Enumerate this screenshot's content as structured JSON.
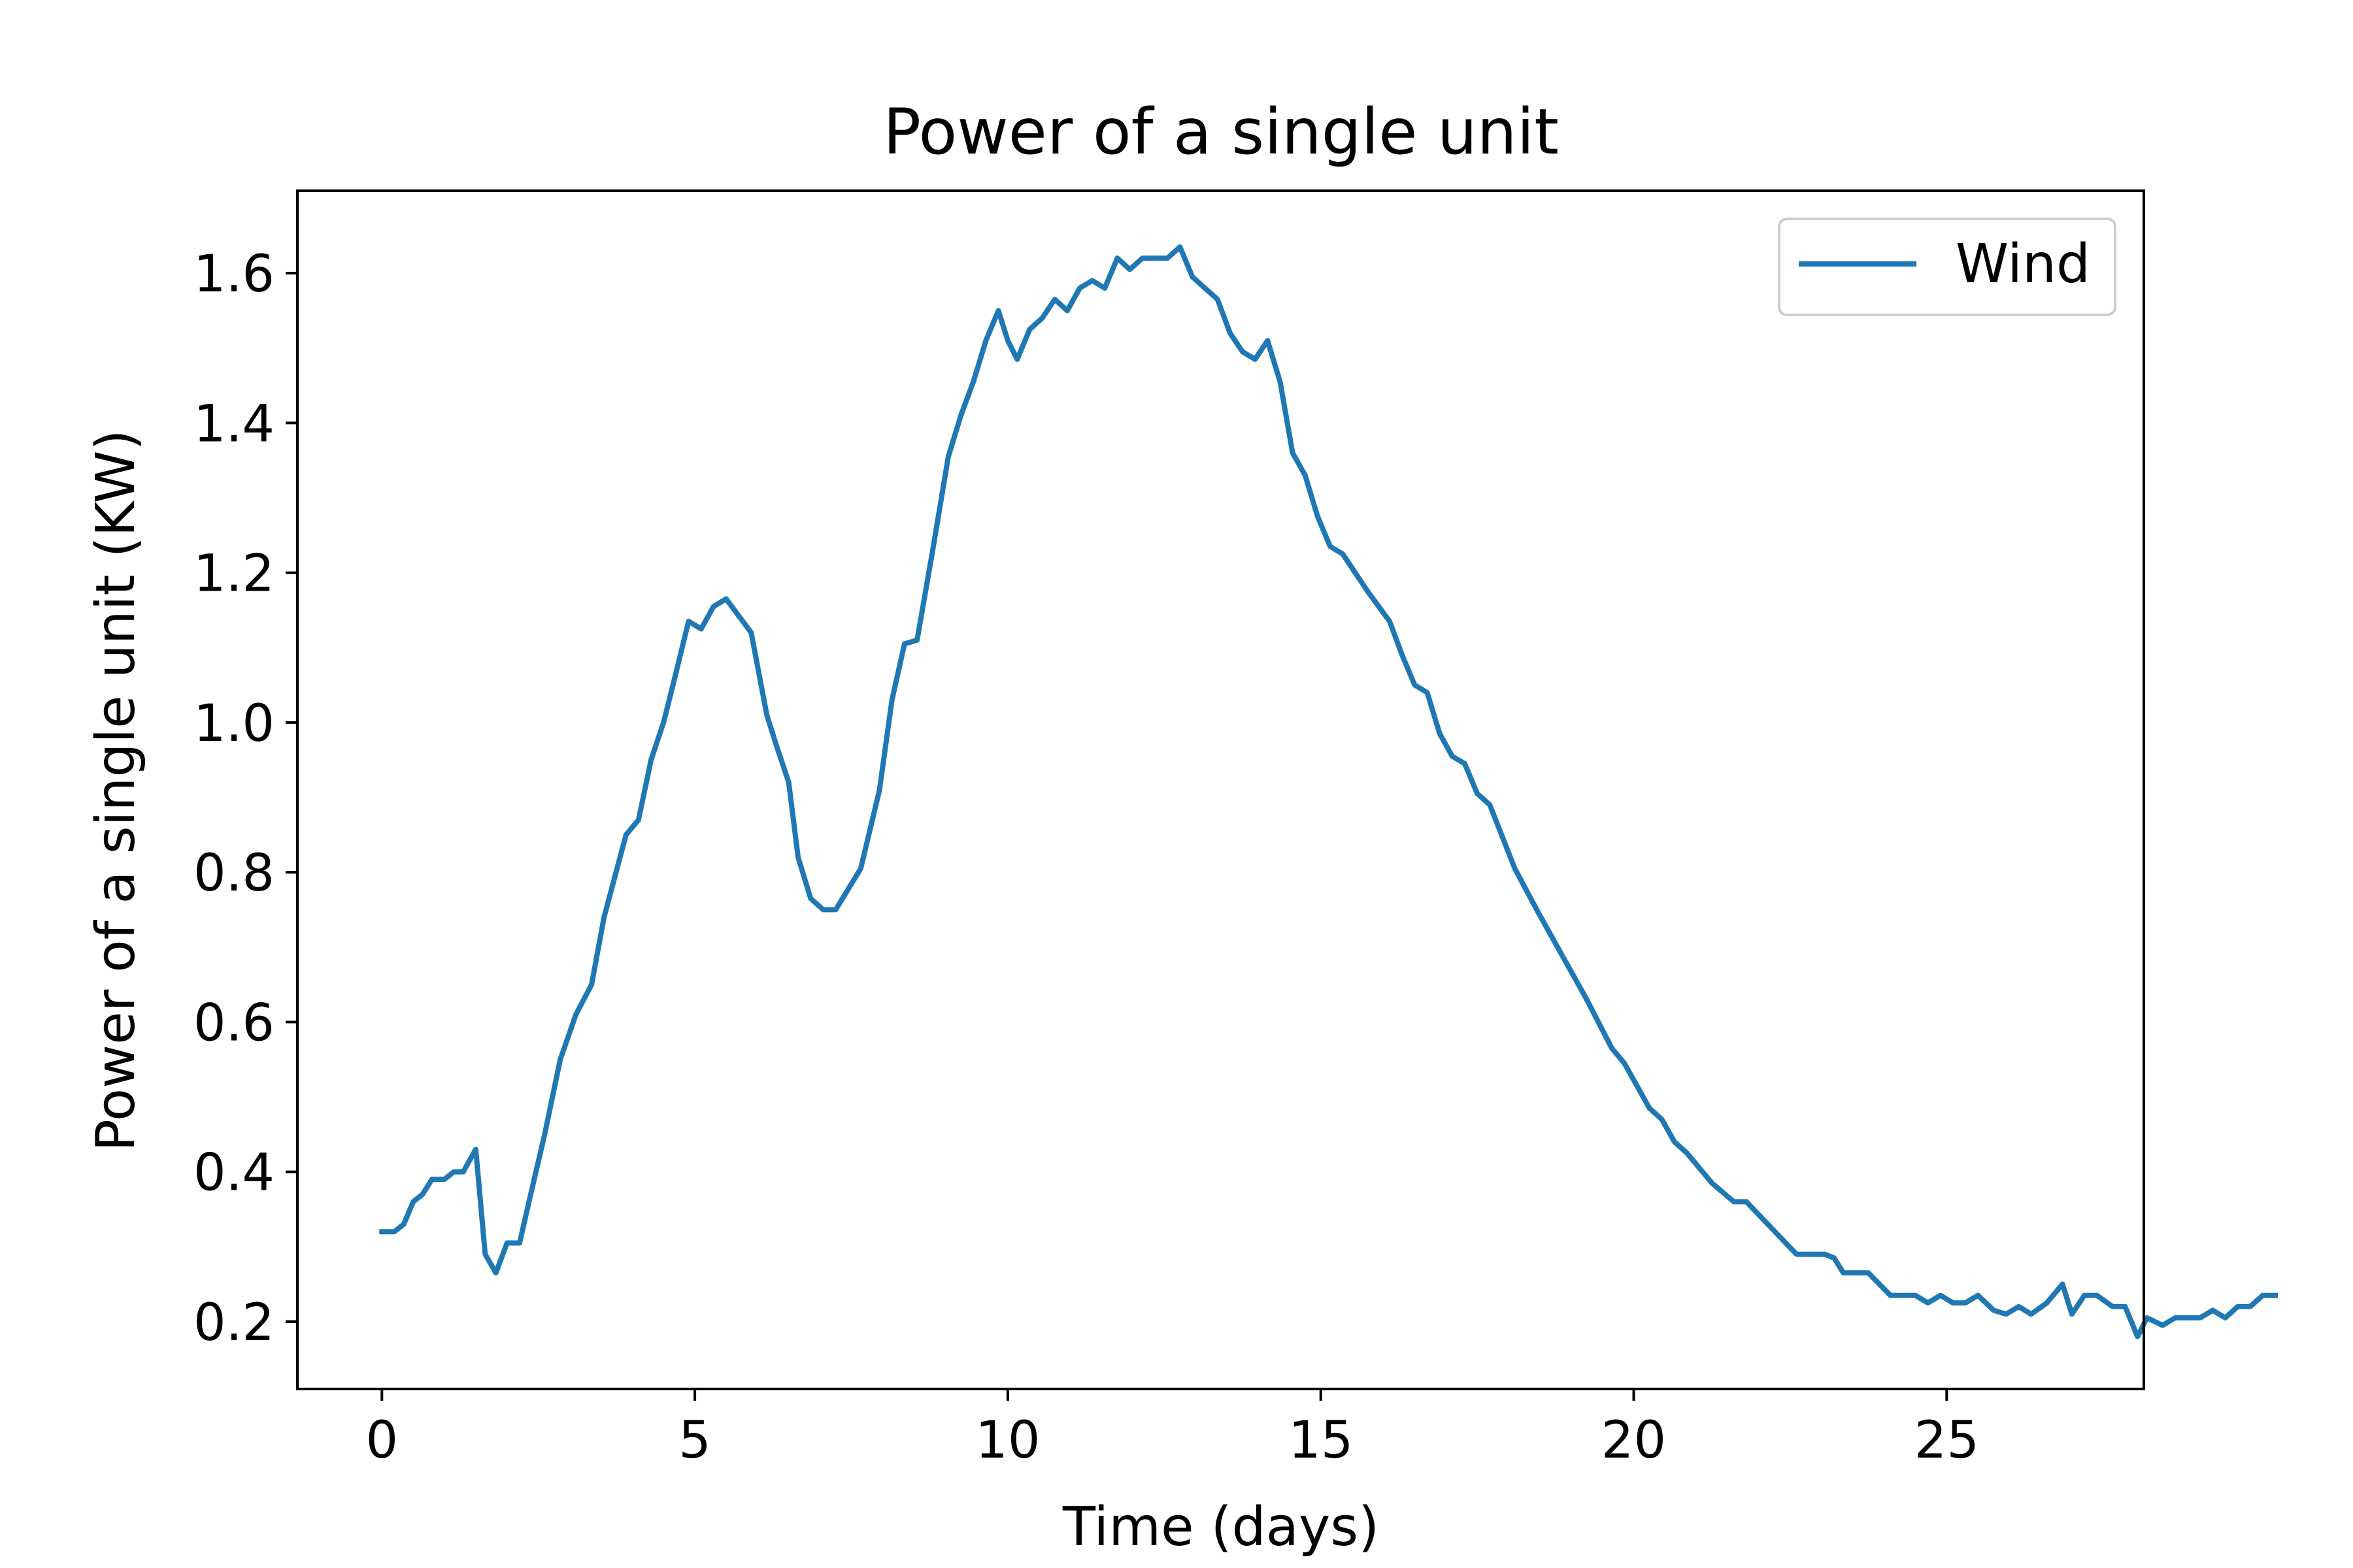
{
  "chart_data": {
    "type": "line",
    "title": "Power of a single unit",
    "xlabel": "Time (days)",
    "ylabel": "Power of a single unit (KW)",
    "xlim": [
      -1.35,
      28.15
    ],
    "ylim": [
      0.11,
      1.71
    ],
    "xticks": [
      0,
      5,
      10,
      15,
      20,
      25
    ],
    "yticks": [
      0.2,
      0.4,
      0.6,
      0.8,
      1.0,
      1.2,
      1.4,
      1.6
    ],
    "ytick_labels": [
      "0.2",
      "0.4",
      "0.6",
      "0.8",
      "1.0",
      "1.2",
      "1.4",
      "1.6"
    ],
    "grid": false,
    "legend_position": "upper right",
    "series": [
      {
        "name": "Wind",
        "color": "#1f77b4",
        "points": [
          [
            0.0,
            0.32
          ],
          [
            0.2,
            0.32
          ],
          [
            0.35,
            0.33
          ],
          [
            0.5,
            0.36
          ],
          [
            0.65,
            0.37
          ],
          [
            0.8,
            0.39
          ],
          [
            1.0,
            0.39
          ],
          [
            1.15,
            0.4
          ],
          [
            1.3,
            0.4
          ],
          [
            1.5,
            0.43
          ],
          [
            1.65,
            0.29
          ],
          [
            1.82,
            0.265
          ],
          [
            2.0,
            0.305
          ],
          [
            2.2,
            0.305
          ],
          [
            2.35,
            0.36
          ],
          [
            2.6,
            0.45
          ],
          [
            2.85,
            0.55
          ],
          [
            3.1,
            0.61
          ],
          [
            3.35,
            0.65
          ],
          [
            3.55,
            0.74
          ],
          [
            3.9,
            0.85
          ],
          [
            4.1,
            0.87
          ],
          [
            4.3,
            0.95
          ],
          [
            4.5,
            1.0
          ],
          [
            4.65,
            1.05
          ],
          [
            4.9,
            1.135
          ],
          [
            5.1,
            1.125
          ],
          [
            5.3,
            1.155
          ],
          [
            5.5,
            1.165
          ],
          [
            5.9,
            1.12
          ],
          [
            6.15,
            1.01
          ],
          [
            6.3,
            0.97
          ],
          [
            6.5,
            0.92
          ],
          [
            6.65,
            0.82
          ],
          [
            6.85,
            0.765
          ],
          [
            7.05,
            0.75
          ],
          [
            7.25,
            0.75
          ],
          [
            7.65,
            0.805
          ],
          [
            7.95,
            0.91
          ],
          [
            8.15,
            1.03
          ],
          [
            8.35,
            1.105
          ],
          [
            8.55,
            1.11
          ],
          [
            8.8,
            1.23
          ],
          [
            9.05,
            1.355
          ],
          [
            9.25,
            1.41
          ],
          [
            9.45,
            1.455
          ],
          [
            9.65,
            1.51
          ],
          [
            9.85,
            1.55
          ],
          [
            10.0,
            1.51
          ],
          [
            10.15,
            1.485
          ],
          [
            10.35,
            1.525
          ],
          [
            10.55,
            1.54
          ],
          [
            10.75,
            1.565
          ],
          [
            10.95,
            1.55
          ],
          [
            11.15,
            1.58
          ],
          [
            11.35,
            1.59
          ],
          [
            11.55,
            1.58
          ],
          [
            11.75,
            1.62
          ],
          [
            11.95,
            1.605
          ],
          [
            12.15,
            1.62
          ],
          [
            12.35,
            1.62
          ],
          [
            12.55,
            1.62
          ],
          [
            12.75,
            1.635
          ],
          [
            12.95,
            1.595
          ],
          [
            13.35,
            1.565
          ],
          [
            13.55,
            1.52
          ],
          [
            13.75,
            1.495
          ],
          [
            13.95,
            1.485
          ],
          [
            14.15,
            1.51
          ],
          [
            14.35,
            1.455
          ],
          [
            14.55,
            1.36
          ],
          [
            14.75,
            1.33
          ],
          [
            14.95,
            1.275
          ],
          [
            15.15,
            1.235
          ],
          [
            15.35,
            1.225
          ],
          [
            15.75,
            1.175
          ],
          [
            16.1,
            1.135
          ],
          [
            16.3,
            1.09
          ],
          [
            16.5,
            1.05
          ],
          [
            16.7,
            1.04
          ],
          [
            16.9,
            0.985
          ],
          [
            17.1,
            0.955
          ],
          [
            17.3,
            0.945
          ],
          [
            17.5,
            0.905
          ],
          [
            17.7,
            0.89
          ],
          [
            18.1,
            0.805
          ],
          [
            18.45,
            0.75
          ],
          [
            18.85,
            0.69
          ],
          [
            19.25,
            0.63
          ],
          [
            19.65,
            0.565
          ],
          [
            19.85,
            0.545
          ],
          [
            20.25,
            0.485
          ],
          [
            20.45,
            0.47
          ],
          [
            20.65,
            0.44
          ],
          [
            20.85,
            0.425
          ],
          [
            21.05,
            0.405
          ],
          [
            21.25,
            0.385
          ],
          [
            21.6,
            0.36
          ],
          [
            21.8,
            0.36
          ],
          [
            22.2,
            0.325
          ],
          [
            22.6,
            0.29
          ],
          [
            23.05,
            0.29
          ],
          [
            23.2,
            0.285
          ],
          [
            23.35,
            0.265
          ],
          [
            23.75,
            0.265
          ],
          [
            24.1,
            0.235
          ],
          [
            24.5,
            0.235
          ],
          [
            24.7,
            0.225
          ],
          [
            24.9,
            0.235
          ],
          [
            25.1,
            0.225
          ],
          [
            25.3,
            0.225
          ],
          [
            25.5,
            0.235
          ],
          [
            25.75,
            0.215
          ],
          [
            25.95,
            0.21
          ],
          [
            26.15,
            0.22
          ],
          [
            26.35,
            0.21
          ],
          [
            26.6,
            0.225
          ],
          [
            26.85,
            0.25
          ],
          [
            27.0,
            0.21
          ],
          [
            27.2,
            0.235
          ],
          [
            27.4,
            0.235
          ],
          [
            27.65,
            0.22
          ],
          [
            27.85,
            0.22
          ],
          [
            28.05,
            0.18
          ],
          [
            28.2,
            0.205
          ],
          [
            28.45,
            0.195
          ],
          [
            28.65,
            0.205
          ],
          [
            29.05,
            0.205
          ],
          [
            29.25,
            0.215
          ],
          [
            29.45,
            0.205
          ],
          [
            29.65,
            0.22
          ],
          [
            29.85,
            0.22
          ],
          [
            30.05,
            0.235
          ],
          [
            30.25,
            0.235
          ]
        ]
      }
    ]
  }
}
